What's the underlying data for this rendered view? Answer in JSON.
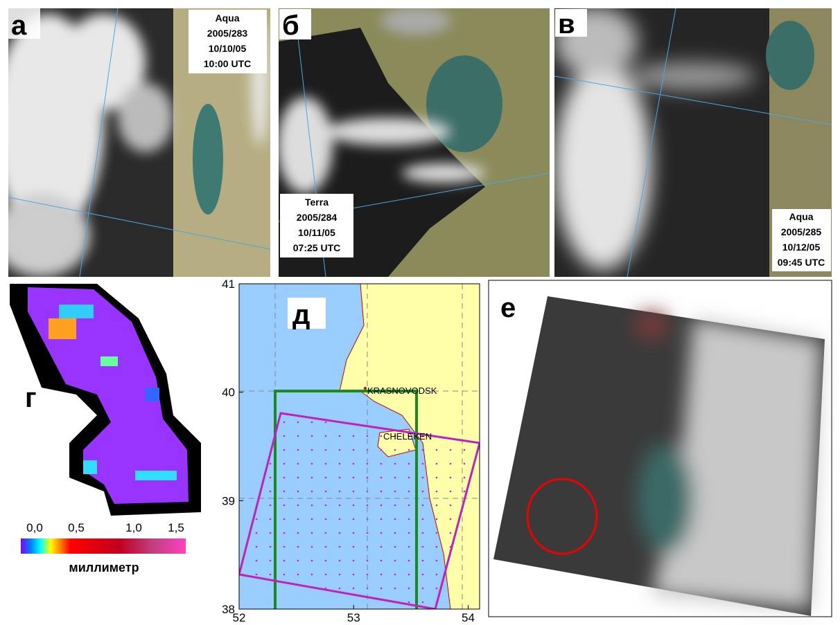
{
  "panels": [
    {
      "letter": "а",
      "caption": [
        "Aqua",
        "2005/283",
        "10/10/05",
        "10:00 UTC"
      ]
    },
    {
      "letter": "б",
      "caption": [
        "Terra",
        "2005/284",
        "10/11/05",
        "07:25 UTC"
      ]
    },
    {
      "letter": "в",
      "caption": [
        "Aqua",
        "2005/285",
        "10/12/05",
        "09:45 UTC"
      ]
    }
  ],
  "precipitation": {
    "letter": "г",
    "colorbar_labels": [
      "0,0",
      "0,5",
      "1,0",
      "1,5"
    ],
    "unit": "миллиметр"
  },
  "map": {
    "letter": "д",
    "xlim": [
      52,
      54.1
    ],
    "ylim": [
      38,
      41
    ],
    "xticks": [
      52,
      53,
      54
    ],
    "yticks": [
      38,
      39,
      40,
      41
    ],
    "places": [
      "KRASNOVODSK",
      "CHELEKEN"
    ]
  },
  "image": {
    "letter": "е"
  }
}
